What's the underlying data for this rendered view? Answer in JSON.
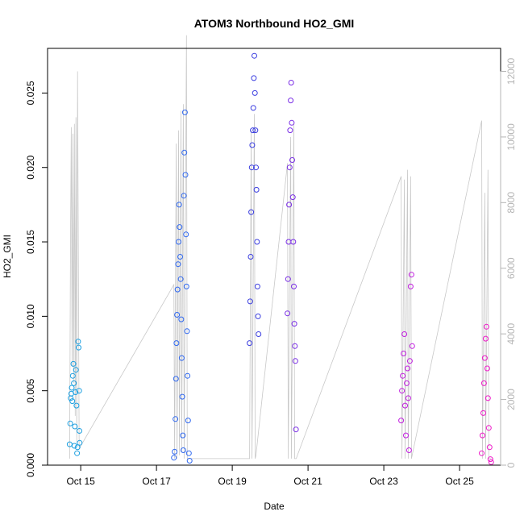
{
  "chart_data": {
    "type": "scatter",
    "title": "ATOM3 Northbound HO2_GMI",
    "xlabel": "Date",
    "ylabel": "HO2_GMI",
    "xlim": [
      "2017-10-14 03:00",
      "2017-10-26 02:00"
    ],
    "ylim": [
      0,
      0.028
    ],
    "y_ticks": [
      0.0,
      0.005,
      0.01,
      0.015,
      0.02,
      0.025
    ],
    "y_tick_labels": [
      "0.000",
      "0.005",
      "0.010",
      "0.015",
      "0.020",
      "0.025"
    ],
    "x_ticks": [
      "2017-10-15",
      "2017-10-17",
      "2017-10-19",
      "2017-10-21",
      "2017-10-23",
      "2017-10-25"
    ],
    "x_tick_labels": [
      "Oct 15",
      "Oct 17",
      "Oct 19",
      "Oct 21",
      "Oct 23",
      "Oct 25"
    ],
    "y2lim": [
      0,
      12700
    ],
    "y2_ticks": [
      0,
      2000,
      4000,
      6000,
      8000,
      10000,
      12000
    ],
    "y2_tick_labels": [
      "0",
      "2000",
      "4000",
      "6000",
      "8000",
      "10000",
      "12000"
    ],
    "grid": false,
    "series": [
      {
        "color": "#1c9fe0",
        "points": [
          [
            "2017-10-14 17:00",
            0.0014
          ],
          [
            "2017-10-14 17:20",
            0.0028
          ],
          [
            "2017-10-14 17:40",
            0.0045
          ],
          [
            "2017-10-14 18:00",
            0.0048
          ],
          [
            "2017-10-14 18:20",
            0.0052
          ],
          [
            "2017-10-14 18:40",
            0.0043
          ],
          [
            "2017-10-14 19:00",
            0.006
          ],
          [
            "2017-10-14 19:20",
            0.0068
          ],
          [
            "2017-10-14 19:40",
            0.0055
          ],
          [
            "2017-10-14 20:00",
            0.0013
          ],
          [
            "2017-10-14 20:20",
            0.0026
          ],
          [
            "2017-10-14 20:40",
            0.0049
          ],
          [
            "2017-10-14 21:00",
            0.0064
          ],
          [
            "2017-10-14 21:20",
            0.004
          ],
          [
            "2017-10-14 21:40",
            0.0008
          ],
          [
            "2017-10-14 22:00",
            0.0012
          ],
          [
            "2017-10-14 22:20",
            0.0083
          ],
          [
            "2017-10-14 22:40",
            0.0079
          ],
          [
            "2017-10-14 23:00",
            0.005
          ],
          [
            "2017-10-14 23:10",
            0.0023
          ],
          [
            "2017-10-14 23:20",
            0.0015
          ]
        ]
      },
      {
        "color": "#2f68f0",
        "points": [
          [
            "2017-10-17 11:00",
            0.0005
          ],
          [
            "2017-10-17 11:30",
            0.0009
          ],
          [
            "2017-10-17 12:00",
            0.0031
          ],
          [
            "2017-10-17 12:20",
            0.0058
          ],
          [
            "2017-10-17 12:40",
            0.0082
          ],
          [
            "2017-10-17 13:00",
            0.0101
          ],
          [
            "2017-10-17 13:20",
            0.0118
          ],
          [
            "2017-10-17 13:40",
            0.0135
          ],
          [
            "2017-10-17 14:00",
            0.015
          ],
          [
            "2017-10-17 14:20",
            0.0175
          ],
          [
            "2017-10-17 14:40",
            0.016
          ],
          [
            "2017-10-17 15:00",
            0.014
          ],
          [
            "2017-10-17 15:20",
            0.0125
          ],
          [
            "2017-10-17 15:40",
            0.0098
          ],
          [
            "2017-10-17 16:00",
            0.0072
          ],
          [
            "2017-10-17 16:20",
            0.0046
          ],
          [
            "2017-10-17 16:40",
            0.002
          ],
          [
            "2017-10-17 17:00",
            0.001
          ],
          [
            "2017-10-17 17:20",
            0.0181
          ],
          [
            "2017-10-17 17:40",
            0.021
          ],
          [
            "2017-10-17 18:00",
            0.0237
          ],
          [
            "2017-10-17 18:20",
            0.0195
          ],
          [
            "2017-10-17 18:40",
            0.0155
          ],
          [
            "2017-10-17 19:00",
            0.012
          ],
          [
            "2017-10-17 19:20",
            0.009
          ],
          [
            "2017-10-17 19:40",
            0.006
          ],
          [
            "2017-10-17 20:00",
            0.003
          ],
          [
            "2017-10-17 20:30",
            0.0008
          ],
          [
            "2017-10-17 21:00",
            0.0003
          ]
        ]
      },
      {
        "color": "#3b3ee0",
        "points": [
          [
            "2017-10-19 11:00",
            0.0082
          ],
          [
            "2017-10-19 11:20",
            0.011
          ],
          [
            "2017-10-19 11:40",
            0.014
          ],
          [
            "2017-10-19 12:00",
            0.017
          ],
          [
            "2017-10-19 12:20",
            0.02
          ],
          [
            "2017-10-19 12:40",
            0.0215
          ],
          [
            "2017-10-19 13:00",
            0.0225
          ],
          [
            "2017-10-19 13:20",
            0.024
          ],
          [
            "2017-10-19 13:40",
            0.026
          ],
          [
            "2017-10-19 14:00",
            0.0275
          ],
          [
            "2017-10-19 14:20",
            0.025
          ],
          [
            "2017-10-19 14:40",
            0.0225
          ],
          [
            "2017-10-19 15:00",
            0.02
          ],
          [
            "2017-10-19 15:20",
            0.0185
          ],
          [
            "2017-10-19 15:40",
            0.015
          ],
          [
            "2017-10-19 16:00",
            0.012
          ],
          [
            "2017-10-19 16:20",
            0.01
          ],
          [
            "2017-10-19 16:40",
            0.0088
          ]
        ]
      },
      {
        "color": "#7a2ee6",
        "points": [
          [
            "2017-10-20 11:00",
            0.0102
          ],
          [
            "2017-10-20 11:20",
            0.0125
          ],
          [
            "2017-10-20 11:40",
            0.015
          ],
          [
            "2017-10-20 12:00",
            0.0175
          ],
          [
            "2017-10-20 12:20",
            0.02
          ],
          [
            "2017-10-20 12:40",
            0.0225
          ],
          [
            "2017-10-20 13:00",
            0.0245
          ],
          [
            "2017-10-20 13:20",
            0.0257
          ],
          [
            "2017-10-20 13:40",
            0.023
          ],
          [
            "2017-10-20 14:00",
            0.0205
          ],
          [
            "2017-10-20 14:20",
            0.018
          ],
          [
            "2017-10-20 14:40",
            0.015
          ],
          [
            "2017-10-20 15:00",
            0.012
          ],
          [
            "2017-10-20 15:20",
            0.0095
          ],
          [
            "2017-10-20 15:40",
            0.008
          ],
          [
            "2017-10-20 16:00",
            0.007
          ],
          [
            "2017-10-20 16:20",
            0.0024
          ]
        ]
      },
      {
        "color": "#c21ee0",
        "points": [
          [
            "2017-10-23 11:00",
            0.003
          ],
          [
            "2017-10-23 11:30",
            0.005
          ],
          [
            "2017-10-23 12:00",
            0.006
          ],
          [
            "2017-10-23 12:30",
            0.0075
          ],
          [
            "2017-10-23 13:00",
            0.0088
          ],
          [
            "2017-10-23 13:30",
            0.004
          ],
          [
            "2017-10-23 14:00",
            0.002
          ],
          [
            "2017-10-23 14:30",
            0.0055
          ],
          [
            "2017-10-23 15:00",
            0.0065
          ],
          [
            "2017-10-23 15:30",
            0.0045
          ],
          [
            "2017-10-23 16:00",
            0.001
          ],
          [
            "2017-10-23 16:30",
            0.007
          ],
          [
            "2017-10-23 17:00",
            0.012
          ],
          [
            "2017-10-23 17:30",
            0.0128
          ],
          [
            "2017-10-23 18:00",
            0.008
          ]
        ]
      },
      {
        "color": "#ee18c8",
        "points": [
          [
            "2017-10-25 14:00",
            0.0008
          ],
          [
            "2017-10-25 14:30",
            0.002
          ],
          [
            "2017-10-25 15:00",
            0.0035
          ],
          [
            "2017-10-25 15:30",
            0.0055
          ],
          [
            "2017-10-25 16:00",
            0.0072
          ],
          [
            "2017-10-25 16:30",
            0.0085
          ],
          [
            "2017-10-25 17:00",
            0.0093
          ],
          [
            "2017-10-25 17:30",
            0.0065
          ],
          [
            "2017-10-25 18:00",
            0.0045
          ],
          [
            "2017-10-25 18:30",
            0.0025
          ],
          [
            "2017-10-25 19:00",
            0.0012
          ],
          [
            "2017-10-25 19:30",
            0.0004
          ],
          [
            "2017-10-25 20:00",
            0.0002
          ]
        ]
      }
    ],
    "secondary_series": {
      "color": "#c8c8c8",
      "points": [
        [
          "2017-10-14 17:00",
          200
        ],
        [
          "2017-10-14 17:30",
          6600
        ],
        [
          "2017-10-14 18:00",
          10300
        ],
        [
          "2017-10-14 18:30",
          3000
        ],
        [
          "2017-10-14 19:00",
          10100
        ],
        [
          "2017-10-14 19:30",
          2500
        ],
        [
          "2017-10-14 20:00",
          10400
        ],
        [
          "2017-10-14 20:30",
          1500
        ],
        [
          "2017-10-14 21:00",
          10600
        ],
        [
          "2017-10-14 21:30",
          700
        ],
        [
          "2017-10-14 22:00",
          12000
        ],
        [
          "2017-10-14 23:00",
          500
        ],
        [
          "2017-10-17 11:00",
          5500
        ],
        [
          "2017-10-17 11:30",
          200
        ],
        [
          "2017-10-17 12:30",
          9800
        ],
        [
          "2017-10-17 13:00",
          200
        ],
        [
          "2017-10-17 14:00",
          10200
        ],
        [
          "2017-10-17 14:30",
          300
        ],
        [
          "2017-10-17 15:30",
          10800
        ],
        [
          "2017-10-17 16:00",
          400
        ],
        [
          "2017-10-17 17:00",
          11000
        ],
        [
          "2017-10-17 17:30",
          200
        ],
        [
          "2017-10-17 19:00",
          13100
        ],
        [
          "2017-10-17 19:30",
          200
        ],
        [
          "2017-10-19 11:00",
          200
        ],
        [
          "2017-10-19 12:00",
          10200
        ],
        [
          "2017-10-19 12:30",
          200
        ],
        [
          "2017-10-19 14:00",
          10700
        ],
        [
          "2017-10-19 14:30",
          200
        ],
        [
          "2017-10-19 15:00",
          300
        ],
        [
          "2017-10-20 11:00",
          9200
        ],
        [
          "2017-10-20 11:30",
          200
        ],
        [
          "2017-10-20 13:00",
          10000
        ],
        [
          "2017-10-20 13:30",
          200
        ],
        [
          "2017-10-20 15:00",
          10400
        ],
        [
          "2017-10-20 15:30",
          200
        ],
        [
          "2017-10-20 16:30",
          200
        ],
        [
          "2017-10-23 11:00",
          8800
        ],
        [
          "2017-10-23 11:30",
          200
        ],
        [
          "2017-10-23 13:00",
          8700
        ],
        [
          "2017-10-23 13:30",
          200
        ],
        [
          "2017-10-23 15:00",
          9000
        ],
        [
          "2017-10-23 15:30",
          200
        ],
        [
          "2017-10-23 17:00",
          8800
        ],
        [
          "2017-10-23 17:30",
          200
        ],
        [
          "2017-10-25 14:00",
          10500
        ],
        [
          "2017-10-25 14:30",
          200
        ],
        [
          "2017-10-25 16:00",
          8300
        ],
        [
          "2017-10-25 16:30",
          200
        ],
        [
          "2017-10-25 18:00",
          9000
        ],
        [
          "2017-10-25 18:30",
          200
        ],
        [
          "2017-10-25 20:00",
          200
        ]
      ]
    }
  }
}
